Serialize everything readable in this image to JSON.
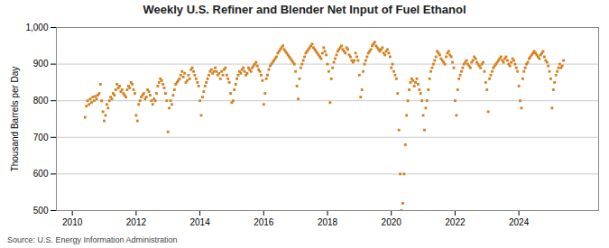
{
  "chart_data": {
    "type": "scatter",
    "title": "Weekly U.S. Refiner and Blender Net Input of Fuel Ethanol",
    "y_label": "Thousand Barrels per Day",
    "source": "Source: U.S. Energy Information Administration",
    "color": "#d4801e",
    "marker": "square",
    "grid": true,
    "xlim": [
      2009.5,
      2026.5
    ],
    "xticks": [
      2010,
      2012,
      2014,
      2016,
      2018,
      2020,
      2022,
      2024
    ],
    "ylim": [
      500,
      1000
    ],
    "yticks": [
      500,
      600,
      700,
      800,
      900,
      {
        "value": 1000,
        "label": "1,000"
      }
    ],
    "x": [
      2010.4,
      2010.44,
      2010.48,
      2010.52,
      2010.56,
      2010.6,
      2010.64,
      2010.68,
      2010.72,
      2010.76,
      2010.8,
      2010.84,
      2010.88,
      2010.92,
      2010.96,
      2011,
      2011.04,
      2011.08,
      2011.12,
      2011.16,
      2011.2,
      2011.24,
      2011.28,
      2011.32,
      2011.36,
      2011.4,
      2011.44,
      2011.48,
      2011.52,
      2011.56,
      2011.6,
      2011.64,
      2011.68,
      2011.72,
      2011.76,
      2011.8,
      2011.84,
      2011.88,
      2011.92,
      2011.96,
      2012,
      2012.04,
      2012.08,
      2012.12,
      2012.16,
      2012.2,
      2012.24,
      2012.28,
      2012.32,
      2012.36,
      2012.4,
      2012.44,
      2012.48,
      2012.52,
      2012.56,
      2012.6,
      2012.64,
      2012.68,
      2012.72,
      2012.76,
      2012.8,
      2012.84,
      2012.88,
      2012.92,
      2012.96,
      2013,
      2013.04,
      2013.08,
      2013.12,
      2013.16,
      2013.2,
      2013.24,
      2013.28,
      2013.32,
      2013.36,
      2013.4,
      2013.44,
      2013.48,
      2013.52,
      2013.56,
      2013.6,
      2013.64,
      2013.68,
      2013.72,
      2013.76,
      2013.8,
      2013.84,
      2013.88,
      2013.92,
      2013.96,
      2014,
      2014.04,
      2014.08,
      2014.12,
      2014.16,
      2014.2,
      2014.24,
      2014.28,
      2014.32,
      2014.36,
      2014.4,
      2014.44,
      2014.48,
      2014.52,
      2014.56,
      2014.6,
      2014.64,
      2014.68,
      2014.72,
      2014.76,
      2014.8,
      2014.84,
      2014.88,
      2014.92,
      2014.96,
      2015,
      2015.04,
      2015.08,
      2015.12,
      2015.16,
      2015.2,
      2015.24,
      2015.28,
      2015.32,
      2015.36,
      2015.4,
      2015.44,
      2015.48,
      2015.52,
      2015.56,
      2015.6,
      2015.64,
      2015.68,
      2015.72,
      2015.76,
      2015.8,
      2015.84,
      2015.88,
      2015.92,
      2015.96,
      2016,
      2016.04,
      2016.08,
      2016.12,
      2016.16,
      2016.2,
      2016.24,
      2016.28,
      2016.32,
      2016.36,
      2016.4,
      2016.44,
      2016.48,
      2016.52,
      2016.56,
      2016.6,
      2016.64,
      2016.68,
      2016.72,
      2016.76,
      2016.8,
      2016.84,
      2016.88,
      2016.92,
      2016.96,
      2017,
      2017.04,
      2017.08,
      2017.12,
      2017.16,
      2017.2,
      2017.24,
      2017.28,
      2017.32,
      2017.36,
      2017.4,
      2017.44,
      2017.48,
      2017.52,
      2017.56,
      2017.6,
      2017.64,
      2017.68,
      2017.72,
      2017.76,
      2017.8,
      2017.84,
      2017.88,
      2017.92,
      2017.96,
      2018,
      2018.04,
      2018.08,
      2018.12,
      2018.16,
      2018.2,
      2018.24,
      2018.28,
      2018.32,
      2018.36,
      2018.4,
      2018.44,
      2018.48,
      2018.52,
      2018.56,
      2018.6,
      2018.64,
      2018.68,
      2018.72,
      2018.76,
      2018.8,
      2018.84,
      2018.88,
      2018.92,
      2018.96,
      2019,
      2019.04,
      2019.08,
      2019.12,
      2019.16,
      2019.2,
      2019.24,
      2019.28,
      2019.32,
      2019.36,
      2019.4,
      2019.44,
      2019.48,
      2019.52,
      2019.56,
      2019.6,
      2019.64,
      2019.68,
      2019.72,
      2019.76,
      2019.8,
      2019.84,
      2019.88,
      2019.92,
      2019.96,
      2020,
      2020.04,
      2020.08,
      2020.12,
      2020.16,
      2020.2,
      2020.24,
      2020.28,
      2020.32,
      2020.36,
      2020.4,
      2020.44,
      2020.48,
      2020.52,
      2020.56,
      2020.6,
      2020.64,
      2020.68,
      2020.72,
      2020.76,
      2020.8,
      2020.84,
      2020.88,
      2020.92,
      2020.96,
      2021,
      2021.04,
      2021.08,
      2021.12,
      2021.16,
      2021.2,
      2021.24,
      2021.28,
      2021.32,
      2021.36,
      2021.4,
      2021.44,
      2021.48,
      2021.52,
      2021.56,
      2021.6,
      2021.64,
      2021.68,
      2021.72,
      2021.76,
      2021.8,
      2021.84,
      2021.88,
      2021.92,
      2021.96,
      2022,
      2022.04,
      2022.08,
      2022.12,
      2022.16,
      2022.2,
      2022.24,
      2022.28,
      2022.32,
      2022.36,
      2022.4,
      2022.44,
      2022.48,
      2022.52,
      2022.56,
      2022.6,
      2022.64,
      2022.68,
      2022.72,
      2022.76,
      2022.8,
      2022.84,
      2022.88,
      2022.92,
      2022.96,
      2023,
      2023.04,
      2023.08,
      2023.12,
      2023.16,
      2023.2,
      2023.24,
      2023.28,
      2023.32,
      2023.36,
      2023.4,
      2023.44,
      2023.48,
      2023.52,
      2023.56,
      2023.6,
      2023.64,
      2023.68,
      2023.72,
      2023.76,
      2023.8,
      2023.84,
      2023.88,
      2023.92,
      2023.96,
      2024,
      2024.04,
      2024.08,
      2024.12,
      2024.16,
      2024.2,
      2024.24,
      2024.28,
      2024.32,
      2024.36,
      2024.4,
      2024.44,
      2024.48,
      2024.52,
      2024.56,
      2024.6,
      2024.64,
      2024.68,
      2024.72,
      2024.76,
      2024.8,
      2024.84,
      2024.88,
      2024.92,
      2024.96,
      2025,
      2025.04,
      2025.08,
      2025.12,
      2025.16,
      2025.2,
      2025.24,
      2025.28,
      2025.32,
      2025.36,
      2025.4
    ],
    "values": [
      755,
      785,
      800,
      790,
      805,
      795,
      810,
      800,
      812,
      805,
      815,
      820,
      845,
      800,
      770,
      745,
      760,
      790,
      780,
      800,
      810,
      805,
      820,
      815,
      830,
      845,
      835,
      840,
      825,
      830,
      820,
      815,
      810,
      830,
      840,
      835,
      850,
      845,
      830,
      820,
      760,
      745,
      790,
      800,
      810,
      815,
      820,
      805,
      810,
      830,
      825,
      815,
      800,
      790,
      805,
      800,
      820,
      840,
      850,
      860,
      855,
      845,
      835,
      820,
      800,
      715,
      780,
      800,
      790,
      815,
      830,
      845,
      850,
      855,
      860,
      870,
      880,
      865,
      875,
      850,
      855,
      870,
      860,
      885,
      890,
      880,
      870,
      860,
      850,
      840,
      800,
      760,
      810,
      825,
      840,
      850,
      860,
      870,
      880,
      885,
      875,
      880,
      890,
      880,
      870,
      875,
      860,
      880,
      870,
      885,
      890,
      870,
      860,
      850,
      820,
      795,
      800,
      830,
      845,
      860,
      870,
      880,
      875,
      885,
      890,
      880,
      870,
      875,
      890,
      885,
      880,
      890,
      895,
      900,
      905,
      895,
      885,
      880,
      870,
      855,
      790,
      820,
      860,
      870,
      885,
      895,
      900,
      905,
      910,
      915,
      920,
      930,
      935,
      940,
      945,
      950,
      940,
      935,
      930,
      925,
      920,
      915,
      910,
      905,
      900,
      880,
      840,
      805,
      860,
      890,
      900,
      910,
      920,
      930,
      935,
      940,
      945,
      950,
      955,
      945,
      940,
      935,
      930,
      925,
      920,
      915,
      930,
      945,
      935,
      925,
      900,
      880,
      795,
      860,
      890,
      905,
      915,
      925,
      935,
      940,
      945,
      950,
      940,
      935,
      930,
      945,
      940,
      925,
      920,
      910,
      905,
      910,
      930,
      920,
      910,
      870,
      810,
      830,
      880,
      900,
      910,
      920,
      930,
      935,
      940,
      950,
      955,
      960,
      950,
      945,
      940,
      935,
      940,
      945,
      930,
      925,
      935,
      940,
      930,
      920,
      890,
      900,
      880,
      870,
      860,
      820,
      720,
      600,
      500,
      520,
      600,
      680,
      760,
      800,
      830,
      850,
      860,
      855,
      840,
      850,
      860,
      845,
      830,
      820,
      800,
      760,
      720,
      780,
      800,
      830,
      860,
      880,
      890,
      900,
      910,
      920,
      935,
      930,
      925,
      915,
      910,
      905,
      900,
      920,
      930,
      935,
      925,
      920,
      905,
      890,
      800,
      760,
      830,
      860,
      870,
      880,
      890,
      900,
      905,
      910,
      900,
      895,
      890,
      905,
      910,
      920,
      915,
      905,
      900,
      895,
      890,
      900,
      905,
      880,
      850,
      830,
      770,
      860,
      870,
      880,
      890,
      895,
      900,
      905,
      910,
      915,
      920,
      910,
      905,
      915,
      920,
      910,
      900,
      895,
      905,
      915,
      910,
      900,
      890,
      880,
      840,
      800,
      780,
      860,
      880,
      890,
      900,
      905,
      915,
      920,
      925,
      930,
      935,
      930,
      925,
      920,
      915,
      925,
      930,
      935,
      920,
      910,
      905,
      895,
      880,
      860,
      780,
      830,
      850,
      870,
      880,
      890,
      900,
      890,
      895,
      910
    ]
  }
}
